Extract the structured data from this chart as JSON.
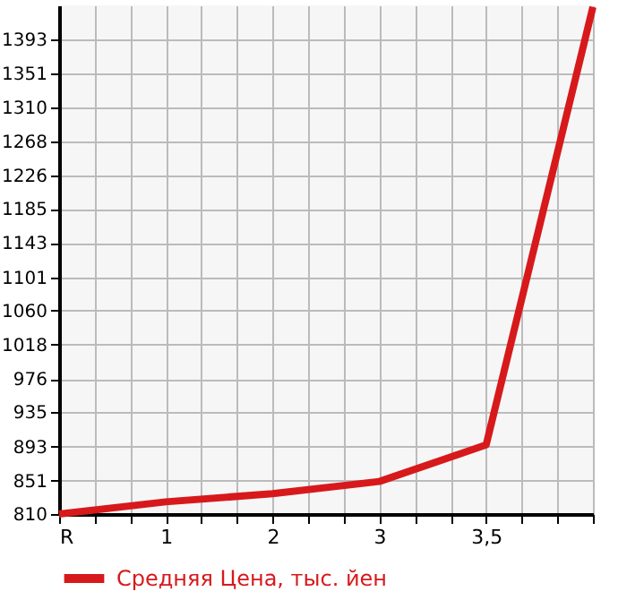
{
  "chart_data": {
    "type": "line",
    "categories": [
      "R",
      "1",
      "2",
      "3",
      "3,5",
      null
    ],
    "series": [
      {
        "name": "Средняя Цена, тыс. йен",
        "color": "#d7191c",
        "values": [
          810,
          825,
          835,
          850,
          895,
          1433
        ]
      }
    ],
    "ylim": [
      810,
      1435
    ],
    "yticks": [
      810,
      851,
      893,
      935,
      976,
      1018,
      1060,
      1101,
      1143,
      1185,
      1226,
      1268,
      1310,
      1351,
      1393
    ],
    "grid": true,
    "legend": "bottom",
    "marker": "none",
    "line_style": "solid"
  }
}
